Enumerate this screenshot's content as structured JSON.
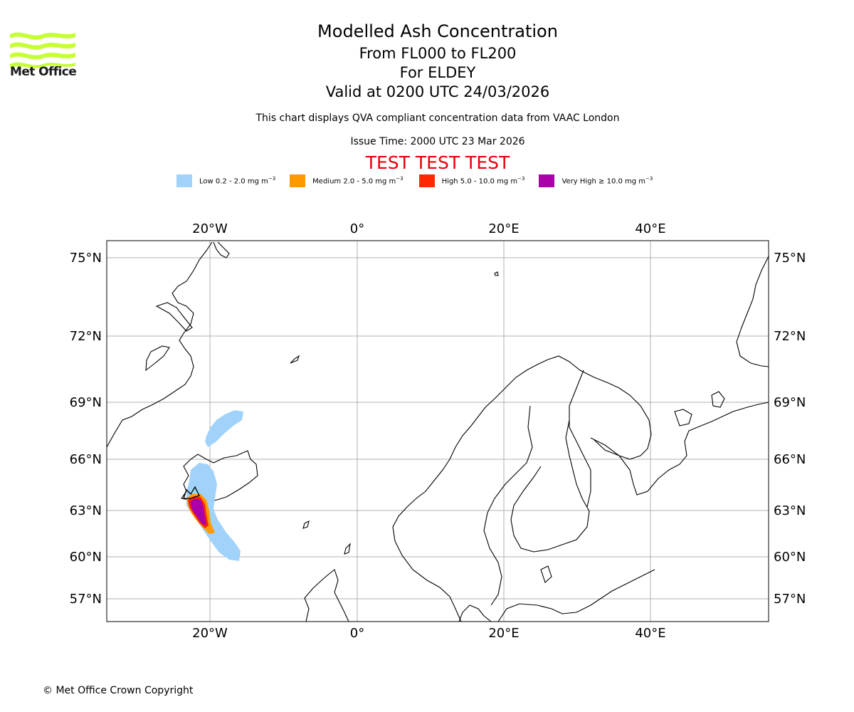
{
  "header": {
    "logo_text": "Met Office",
    "title": "Modelled Ash Concentration",
    "flight_levels": "From FL000 to FL200",
    "volcano": "For ELDEY",
    "valid_time": "Valid at 0200 UTC 24/03/2026",
    "subtitle": "This chart displays QVA compliant concentration data from VAAC London",
    "issue_time": "Issue Time: 2000 UTC 23 Mar 2026",
    "test_banner": "TEST TEST TEST"
  },
  "legend": [
    {
      "label": "Low 0.2 - 2.0 mg m",
      "unit_sup": "−3",
      "color": "#a0d2fa"
    },
    {
      "label": "Medium 2.0 - 5.0 mg m",
      "unit_sup": "−3",
      "color": "#ff9900"
    },
    {
      "label": "High 5.0 - 10.0 mg m",
      "unit_sup": "−3",
      "color": "#ff2600"
    },
    {
      "label": "Very High ≥ 10.0 mg m",
      "unit_sup": "−3",
      "color": "#aa00aa"
    }
  ],
  "map": {
    "lon_labels": [
      "20°W",
      "0°",
      "20°E",
      "40°E"
    ],
    "lat_labels": [
      "75°N",
      "72°N",
      "69°N",
      "66°N",
      "63°N",
      "60°N",
      "57°N"
    ],
    "gridlines": true
  },
  "footer": {
    "copyright": "© Met Office Crown Copyright"
  }
}
